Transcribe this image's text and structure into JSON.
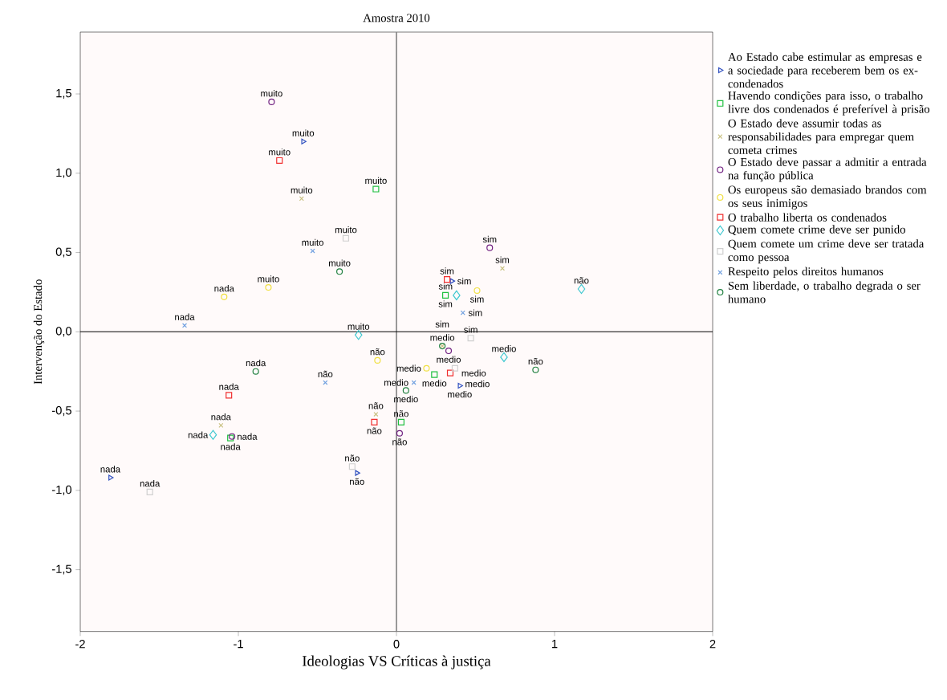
{
  "chart_data": {
    "type": "scatter",
    "title": "Amostra 2010",
    "xlabel": "Ideologias VS Críticas à justiça",
    "ylabel": "Intervenção do Estado",
    "xlim": [
      -2,
      2
    ],
    "ylim": [
      -1.89,
      1.89
    ],
    "xticks": [
      -2,
      -1,
      0,
      1,
      2
    ],
    "yticks": [
      {
        "value": -1.5,
        "label": "-1,5"
      },
      {
        "value": -1.0,
        "label": "-1,0"
      },
      {
        "value": -0.5,
        "label": "-0,5"
      },
      {
        "value": 0.0,
        "label": "0,0"
      },
      {
        "value": 0.5,
        "label": "0,5"
      },
      {
        "value": 1.0,
        "label": "1,0"
      },
      {
        "value": 1.5,
        "label": "1,5"
      }
    ],
    "legend": "right",
    "ref_lines": [
      {
        "axis": "x",
        "value": 0,
        "color": "#808080"
      },
      {
        "axis": "y",
        "value": 0,
        "color": "#000000"
      }
    ],
    "series": [
      {
        "name": "Ao Estado cabe estimular as empresas e a sociedade para receberem bem os ex-condenados",
        "color": "#3050c0",
        "marker": "triangle",
        "x": [
          -0.59,
          0.35,
          0.4,
          -0.25,
          -1.81
        ],
        "values": [
          1.2,
          0.32,
          -0.34,
          -0.89,
          -0.92
        ]
      },
      {
        "name": "Havendo condições para isso, o trabalho livre dos condenados é preferível à prisão",
        "color": "#20c040",
        "marker": "square",
        "x": [
          -0.13,
          0.31,
          0.24,
          0.03,
          -1.05
        ],
        "values": [
          0.9,
          0.23,
          -0.27,
          -0.57,
          -0.67
        ]
      },
      {
        "name": "O Estado deve assumir todas as responsabilidades para empregar quem cometa crimes",
        "color": "#c8c080",
        "marker": "cross",
        "x": [
          -0.6,
          0.67,
          0.29,
          -0.13,
          -1.11
        ],
        "values": [
          0.84,
          0.4,
          -0.09,
          -0.52,
          -0.59
        ]
      },
      {
        "name": "O Estado deve passar a admitir a entrada na função pública",
        "color": "#702080",
        "marker": "circle",
        "x": [
          -0.79,
          0.59,
          0.33,
          0.02,
          -1.04
        ],
        "values": [
          1.45,
          0.53,
          -0.12,
          -0.64,
          -0.66
        ]
      },
      {
        "name": "Os europeus são demasiado brandos com os seus inimigos",
        "color": "#f0e040",
        "marker": "circle",
        "x": [
          -0.81,
          0.51,
          0.19,
          -0.12,
          -1.09
        ],
        "values": [
          0.28,
          0.26,
          -0.23,
          -0.18,
          0.22
        ]
      },
      {
        "name": "O trabalho liberta os condenados",
        "color": "#f03030",
        "marker": "square",
        "x": [
          -0.74,
          0.32,
          0.34,
          -0.14,
          -1.06
        ],
        "values": [
          1.08,
          0.33,
          -0.26,
          -0.57,
          -0.4
        ]
      },
      {
        "name": "Quem comete crime deve ser punido",
        "color": "#40c8d0",
        "marker": "diamond",
        "x": [
          -0.24,
          0.38,
          0.68,
          1.17,
          -1.16
        ],
        "values": [
          -0.02,
          0.23,
          -0.16,
          0.27,
          -0.65
        ]
      },
      {
        "name": "Quem comete um crime deve ser tratada como pessoa",
        "color": "#d0d0d0",
        "marker": "square",
        "x": [
          -0.32,
          0.47,
          0.37,
          -0.28,
          -1.56
        ],
        "values": [
          0.59,
          -0.04,
          -0.23,
          -0.85,
          -1.01
        ]
      },
      {
        "name": "Respeito pelos direitos humanos",
        "color": "#70a0e0",
        "marker": "cross",
        "x": [
          -0.53,
          0.42,
          0.11,
          -0.45,
          -1.34
        ],
        "values": [
          0.51,
          0.12,
          -0.32,
          -0.32,
          0.04
        ]
      },
      {
        "name": "Sem liberdade, o trabalho degrada o ser humano",
        "color": "#208040",
        "marker": "circle",
        "x": [
          -0.36,
          0.29,
          0.06,
          0.88,
          -0.89
        ],
        "values": [
          0.38,
          -0.09,
          -0.37,
          -0.24,
          -0.25
        ]
      }
    ],
    "annotations": [
      {
        "text": "muito",
        "x": -0.59,
        "y": 1.2
      },
      {
        "text": "sim",
        "x": 0.35,
        "y": 0.32
      },
      {
        "text": "medio",
        "x": 0.4,
        "y": -0.34
      },
      {
        "text": "não",
        "x": -0.25,
        "y": -0.89
      },
      {
        "text": "nada",
        "x": -1.81,
        "y": -0.92
      },
      {
        "text": "muito",
        "x": -0.13,
        "y": 0.9
      },
      {
        "text": "sim",
        "x": 0.31,
        "y": 0.23
      },
      {
        "text": "medio",
        "x": 0.24,
        "y": -0.27
      },
      {
        "text": "não",
        "x": 0.03,
        "y": -0.57
      },
      {
        "text": "nada",
        "x": -1.05,
        "y": -0.67
      },
      {
        "text": "muito",
        "x": -0.6,
        "y": 0.84
      },
      {
        "text": "sim",
        "x": 0.67,
        "y": 0.4
      },
      {
        "text": "medio",
        "x": 0.29,
        "y": -0.09
      },
      {
        "text": "não",
        "x": -0.13,
        "y": -0.52
      },
      {
        "text": "nada",
        "x": -1.11,
        "y": -0.59
      },
      {
        "text": "muito",
        "x": -0.79,
        "y": 1.45
      },
      {
        "text": "sim",
        "x": 0.59,
        "y": 0.53
      },
      {
        "text": "medio",
        "x": 0.33,
        "y": -0.12
      },
      {
        "text": "não",
        "x": 0.02,
        "y": -0.64
      },
      {
        "text": "nada",
        "x": -1.04,
        "y": -0.66
      },
      {
        "text": "muito",
        "x": -0.81,
        "y": 0.28
      },
      {
        "text": "sim",
        "x": 0.51,
        "y": 0.26
      },
      {
        "text": "medio",
        "x": 0.19,
        "y": -0.23
      },
      {
        "text": "não",
        "x": -0.12,
        "y": -0.18
      },
      {
        "text": "nada",
        "x": -1.09,
        "y": 0.22
      },
      {
        "text": "muito",
        "x": -0.74,
        "y": 1.08
      },
      {
        "text": "sim",
        "x": 0.32,
        "y": 0.33
      },
      {
        "text": "medio",
        "x": 0.34,
        "y": -0.26
      },
      {
        "text": "não",
        "x": -0.14,
        "y": -0.57
      },
      {
        "text": "nada",
        "x": -1.06,
        "y": -0.4
      },
      {
        "text": "muito",
        "x": -0.24,
        "y": -0.02
      },
      {
        "text": "sim",
        "x": 0.38,
        "y": 0.23
      },
      {
        "text": "medio",
        "x": 0.68,
        "y": -0.16
      },
      {
        "text": "não",
        "x": 1.17,
        "y": 0.27
      },
      {
        "text": "nada",
        "x": -1.16,
        "y": -0.65
      },
      {
        "text": "muito",
        "x": -0.32,
        "y": 0.59
      },
      {
        "text": "sim",
        "x": 0.47,
        "y": -0.04
      },
      {
        "text": "medio",
        "x": 0.37,
        "y": -0.23
      },
      {
        "text": "não",
        "x": -0.28,
        "y": -0.85
      },
      {
        "text": "nada",
        "x": -1.56,
        "y": -1.01
      },
      {
        "text": "muito",
        "x": -0.53,
        "y": 0.51
      },
      {
        "text": "sim",
        "x": 0.42,
        "y": 0.12
      },
      {
        "text": "medio",
        "x": 0.11,
        "y": -0.32
      },
      {
        "text": "não",
        "x": -0.45,
        "y": -0.32
      },
      {
        "text": "nada",
        "x": -1.34,
        "y": 0.04
      },
      {
        "text": "muito",
        "x": -0.36,
        "y": 0.38
      },
      {
        "text": "sim",
        "x": 0.29,
        "y": -0.09
      },
      {
        "text": "medio",
        "x": 0.06,
        "y": -0.37
      },
      {
        "text": "não",
        "x": 0.88,
        "y": -0.24
      },
      {
        "text": "nada",
        "x": -0.89,
        "y": -0.25
      }
    ]
  }
}
